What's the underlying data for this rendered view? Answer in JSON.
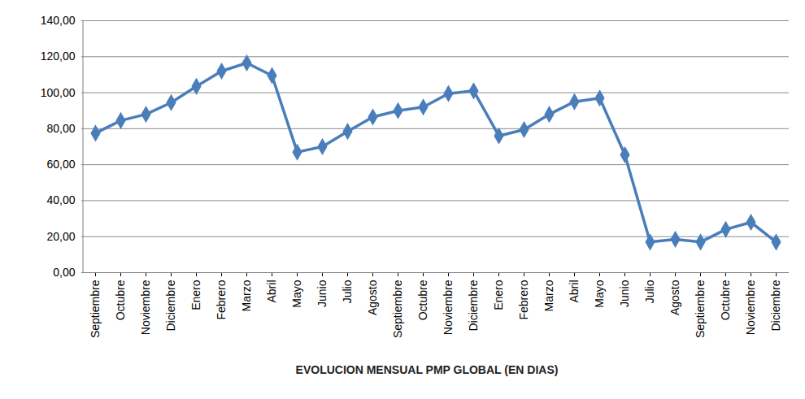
{
  "chart_data": {
    "type": "line",
    "title": "EVOLUCION MENSUAL PMP GLOBAL (EN DIAS)",
    "categories": [
      "Septiembre",
      "Octubre",
      "Noviembre",
      "Diciembre",
      "Enero",
      "Febrero",
      "Marzo",
      "Abril",
      "Mayo",
      "Junio",
      "Julio",
      "Agosto",
      "Septiembre",
      "Octubre",
      "Noviembre",
      "Diciembre",
      "Enero",
      "Febrero",
      "Marzo",
      "Abril",
      "Mayo",
      "Junio",
      "Julio",
      "Agosto",
      "Septiembre",
      "Octubre",
      "Noviembre",
      "Diciembre"
    ],
    "values": [
      77.5,
      84.5,
      88,
      94.5,
      103.5,
      112,
      116.5,
      109.5,
      67,
      70,
      78.5,
      86.5,
      90,
      92,
      99.5,
      101,
      76,
      79.5,
      88,
      95,
      97,
      65.5,
      17,
      18.5,
      17,
      24,
      28,
      17
    ],
    "color": "#4a7ebb",
    "marker": "diamond",
    "ylim": [
      0,
      140
    ],
    "yticks": [
      {
        "value": 0,
        "label": "0,00"
      },
      {
        "value": 20,
        "label": "20,00"
      },
      {
        "value": 40,
        "label": "40,00"
      },
      {
        "value": 60,
        "label": "60,00"
      },
      {
        "value": 80,
        "label": "80,00"
      },
      {
        "value": 100,
        "label": "100,00"
      },
      {
        "value": 120,
        "label": "120,00"
      },
      {
        "value": 140,
        "label": "140,00"
      }
    ],
    "grid": true
  }
}
